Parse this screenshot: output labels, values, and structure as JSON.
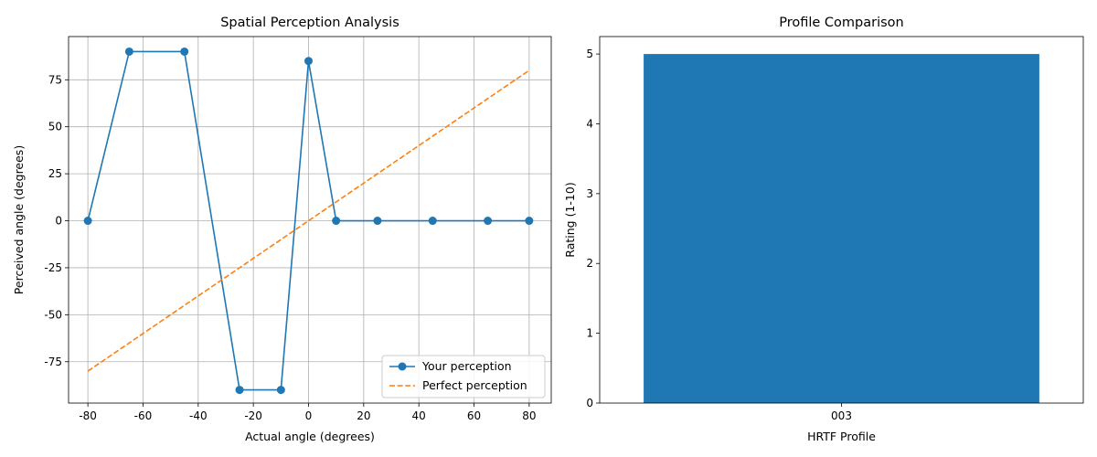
{
  "chart_data": [
    {
      "type": "line",
      "title": "Spatial Perception Analysis",
      "xlabel": "Actual angle (degrees)",
      "ylabel": "Perceived angle (degrees)",
      "xlim": [
        -87,
        88
      ],
      "ylim": [
        -97,
        98
      ],
      "xticks": [
        -80,
        -60,
        -40,
        -20,
        0,
        20,
        40,
        60,
        80
      ],
      "yticks": [
        -75,
        -50,
        -25,
        0,
        25,
        50,
        75
      ],
      "grid": true,
      "legend": "lower-right",
      "series": [
        {
          "name": "Your perception",
          "style": "solid-marker",
          "color": "#1f77b4",
          "x": [
            -80,
            -65,
            -45,
            -25,
            -10,
            0,
            10,
            25,
            45,
            65,
            80
          ],
          "y": [
            0,
            90,
            90,
            -90,
            -90,
            85,
            0,
            0,
            0,
            0,
            0
          ]
        },
        {
          "name": "Perfect perception",
          "style": "dashed",
          "color": "#ff7f0e",
          "x": [
            -80,
            80
          ],
          "y": [
            -80,
            80
          ]
        }
      ]
    },
    {
      "type": "bar",
      "title": "Profile Comparison",
      "xlabel": "HRTF Profile",
      "ylabel": "Rating (1-10)",
      "ylim": [
        0,
        5.25
      ],
      "yticks": [
        0,
        1,
        2,
        3,
        4,
        5
      ],
      "grid": false,
      "color": "#1f77b4",
      "categories": [
        "003"
      ],
      "values": [
        5
      ]
    }
  ]
}
